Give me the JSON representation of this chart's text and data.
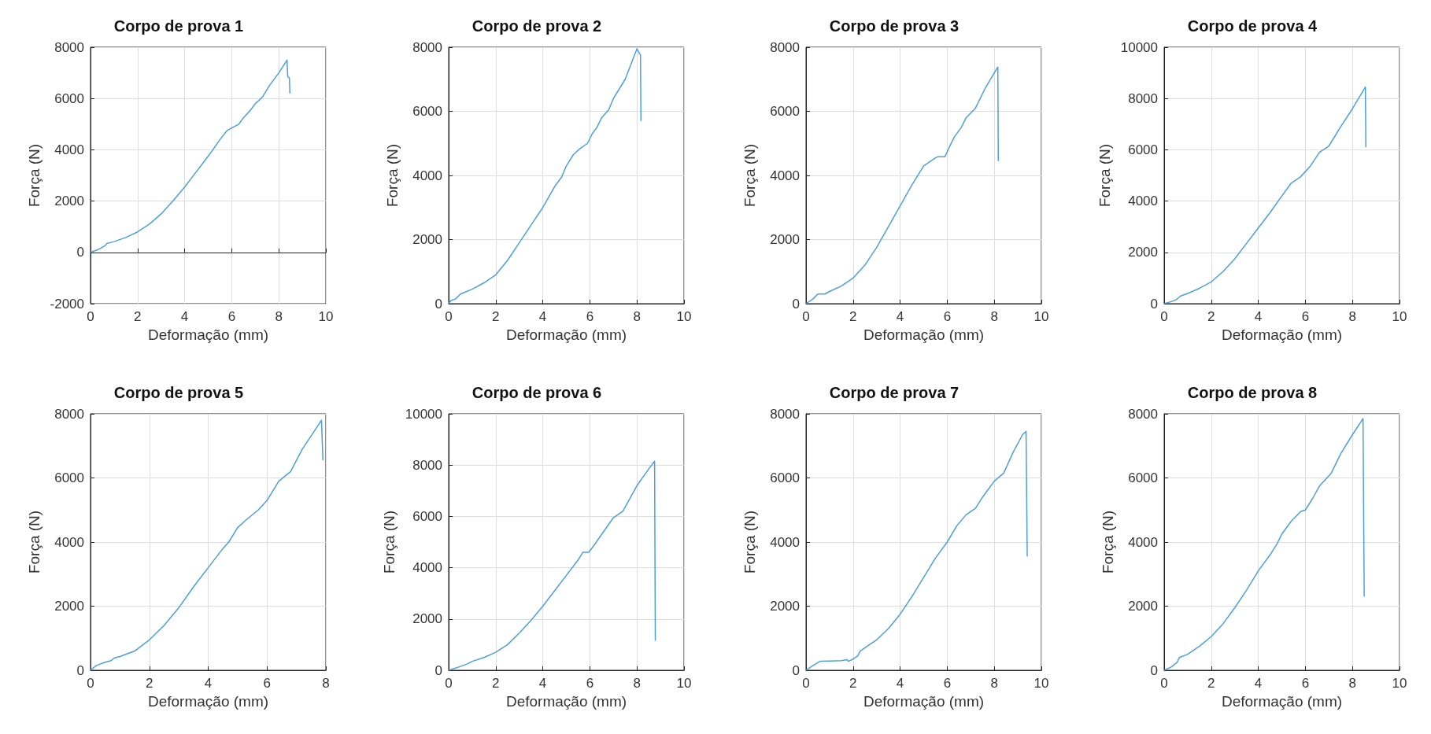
{
  "chart_data": [
    {
      "type": "line",
      "title": "Corpo de prova 1",
      "xlabel": "Deformação (mm)",
      "ylabel": "Força (N)",
      "color": "#4d9fdc",
      "grid": true,
      "xlim": [
        0,
        10
      ],
      "ylim": [
        -2000,
        8000
      ],
      "xticks": [
        0,
        2,
        4,
        6,
        8,
        10
      ],
      "yticks": [
        -2000,
        0,
        2000,
        4000,
        6000,
        8000
      ],
      "x": [
        0,
        0.3,
        0.6,
        0.7,
        1.0,
        1.5,
        2.0,
        2.5,
        3.0,
        3.5,
        4.0,
        4.5,
        5.0,
        5.2,
        5.5,
        5.8,
        6.0,
        6.3,
        6.5,
        6.8,
        7.0,
        7.3,
        7.6,
        8.0,
        8.35,
        8.38,
        8.45,
        8.47
      ],
      "values": [
        0,
        100,
        250,
        350,
        420,
        580,
        800,
        1100,
        1500,
        2000,
        2550,
        3150,
        3750,
        4000,
        4400,
        4750,
        4850,
        5000,
        5250,
        5550,
        5800,
        6050,
        6500,
        7000,
        7500,
        6850,
        6800,
        6200
      ]
    },
    {
      "type": "line",
      "title": "Corpo de prova 2",
      "xlabel": "Deformação (mm)",
      "ylabel": "Força (N)",
      "color": "#4d9fdc",
      "grid": true,
      "xlim": [
        0,
        10
      ],
      "ylim": [
        0,
        8000
      ],
      "xticks": [
        0,
        2,
        4,
        6,
        8,
        10
      ],
      "yticks": [
        0,
        2000,
        4000,
        6000,
        8000
      ],
      "x": [
        0,
        0.1,
        0.3,
        0.5,
        1.0,
        1.5,
        2.0,
        2.5,
        3.0,
        3.5,
        4.0,
        4.5,
        4.8,
        5.0,
        5.3,
        5.6,
        5.9,
        6.1,
        6.3,
        6.5,
        6.8,
        7.0,
        7.5,
        8.0,
        8.15,
        8.17
      ],
      "values": [
        0,
        100,
        150,
        300,
        450,
        650,
        900,
        1350,
        1900,
        2450,
        3000,
        3650,
        3950,
        4300,
        4650,
        4850,
        5000,
        5300,
        5500,
        5800,
        6050,
        6400,
        7000,
        7950,
        7750,
        5700
      ]
    },
    {
      "type": "line",
      "title": "Corpo de prova 3",
      "xlabel": "Deformação (mm)",
      "ylabel": "Força (N)",
      "color": "#4d9fdc",
      "grid": true,
      "xlim": [
        0,
        10
      ],
      "ylim": [
        0,
        8000
      ],
      "xticks": [
        0,
        2,
        4,
        6,
        8,
        10
      ],
      "yticks": [
        0,
        2000,
        4000,
        6000,
        8000
      ],
      "x": [
        0,
        0.3,
        0.5,
        0.8,
        1.0,
        1.5,
        2.0,
        2.5,
        3.0,
        3.5,
        4.0,
        4.5,
        5.0,
        5.5,
        5.6,
        5.9,
        6.1,
        6.3,
        6.6,
        6.8,
        7.2,
        7.6,
        8.0,
        8.15,
        8.17
      ],
      "values": [
        0,
        150,
        300,
        300,
        380,
        550,
        800,
        1200,
        1750,
        2400,
        3050,
        3700,
        4300,
        4550,
        4580,
        4580,
        4900,
        5200,
        5500,
        5800,
        6100,
        6700,
        7200,
        7380,
        4450
      ]
    },
    {
      "type": "line",
      "title": "Corpo de prova 4",
      "xlabel": "Deformação (mm)",
      "ylabel": "Força (N)",
      "color": "#4d9fdc",
      "grid": true,
      "xlim": [
        0,
        10
      ],
      "ylim": [
        0,
        10000
      ],
      "xticks": [
        0,
        2,
        4,
        6,
        8,
        10
      ],
      "yticks": [
        0,
        2000,
        4000,
        6000,
        8000,
        10000
      ],
      "x": [
        0,
        0.3,
        0.5,
        0.7,
        1.0,
        1.5,
        2.0,
        2.5,
        3.0,
        3.5,
        4.0,
        4.5,
        5.0,
        5.4,
        5.8,
        6.2,
        6.6,
        7.0,
        7.5,
        8.0,
        8.55,
        8.57
      ],
      "values": [
        0,
        80,
        150,
        300,
        400,
        600,
        850,
        1250,
        1750,
        2350,
        2950,
        3550,
        4200,
        4700,
        4950,
        5350,
        5900,
        6150,
        6900,
        7600,
        8450,
        6100
      ]
    },
    {
      "type": "line",
      "title": "Corpo de prova 5",
      "xlabel": "Deformação (mm)",
      "ylabel": "Força (N)",
      "color": "#4d9fdc",
      "grid": true,
      "xlim": [
        0,
        8
      ],
      "ylim": [
        0,
        8000
      ],
      "xticks": [
        0,
        2,
        4,
        6,
        8
      ],
      "yticks": [
        0,
        2000,
        4000,
        6000,
        8000
      ],
      "x": [
        0,
        0.2,
        0.5,
        0.7,
        0.8,
        1.0,
        1.5,
        2.0,
        2.5,
        3.0,
        3.5,
        4.0,
        4.5,
        4.7,
        5.0,
        5.3,
        5.7,
        6.0,
        6.4,
        6.8,
        7.2,
        7.6,
        7.85,
        7.9
      ],
      "values": [
        0,
        150,
        250,
        300,
        380,
        430,
        600,
        950,
        1400,
        1950,
        2600,
        3200,
        3800,
        4000,
        4450,
        4700,
        5000,
        5300,
        5900,
        6200,
        6900,
        7450,
        7800,
        6550
      ]
    },
    {
      "type": "line",
      "title": "Corpo de prova 6",
      "xlabel": "Deformação (mm)",
      "ylabel": "Força (N)",
      "color": "#4d9fdc",
      "grid": true,
      "xlim": [
        0,
        10
      ],
      "ylim": [
        0,
        10000
      ],
      "xticks": [
        0,
        2,
        4,
        6,
        8,
        10
      ],
      "yticks": [
        0,
        2000,
        4000,
        6000,
        8000,
        10000
      ],
      "x": [
        0,
        0.5,
        0.8,
        1.0,
        1.5,
        2.0,
        2.5,
        3.0,
        3.5,
        4.0,
        4.5,
        5.0,
        5.5,
        5.7,
        5.95,
        6.2,
        6.5,
        7.0,
        7.4,
        8.0,
        8.5,
        8.75,
        8.78
      ],
      "values": [
        0,
        150,
        250,
        350,
        500,
        700,
        1000,
        1450,
        1950,
        2500,
        3100,
        3700,
        4300,
        4600,
        4600,
        4900,
        5300,
        5950,
        6200,
        7200,
        7850,
        8150,
        1150
      ]
    },
    {
      "type": "line",
      "title": "Corpo de prova 7",
      "xlabel": "Deformação (mm)",
      "ylabel": "Força (N)",
      "color": "#4d9fdc",
      "grid": true,
      "xlim": [
        0,
        10
      ],
      "ylim": [
        0,
        8000
      ],
      "xticks": [
        0,
        2,
        4,
        6,
        8,
        10
      ],
      "yticks": [
        0,
        2000,
        4000,
        6000,
        8000
      ],
      "x": [
        0,
        0.3,
        0.6,
        1.0,
        1.5,
        1.75,
        1.8,
        2.0,
        2.2,
        2.3,
        2.6,
        3.0,
        3.5,
        4.0,
        4.5,
        5.0,
        5.5,
        6.0,
        6.4,
        6.8,
        7.2,
        7.5,
        7.8,
        8.0,
        8.4,
        8.8,
        9.2,
        9.35,
        9.4
      ],
      "values": [
        0,
        150,
        280,
        290,
        300,
        330,
        280,
        350,
        450,
        600,
        750,
        950,
        1300,
        1750,
        2300,
        2900,
        3500,
        4000,
        4500,
        4850,
        5050,
        5400,
        5700,
        5900,
        6150,
        6800,
        7350,
        7450,
        3550
      ]
    },
    {
      "type": "line",
      "title": "Corpo de prova 8",
      "xlabel": "Deformação (mm)",
      "ylabel": "Força (N)",
      "color": "#4d9fdc",
      "grid": true,
      "xlim": [
        0,
        10
      ],
      "ylim": [
        0,
        8000
      ],
      "xticks": [
        0,
        2,
        4,
        6,
        8,
        10
      ],
      "yticks": [
        0,
        2000,
        4000,
        6000,
        8000
      ],
      "x": [
        0,
        0.3,
        0.55,
        0.65,
        1.0,
        1.5,
        2.0,
        2.5,
        3.0,
        3.5,
        4.0,
        4.5,
        4.8,
        5.0,
        5.4,
        5.8,
        6.0,
        6.3,
        6.6,
        7.1,
        7.5,
        8.0,
        8.45,
        8.5
      ],
      "values": [
        0,
        100,
        250,
        400,
        500,
        750,
        1050,
        1450,
        1950,
        2500,
        3100,
        3600,
        3950,
        4250,
        4650,
        4950,
        5000,
        5350,
        5750,
        6150,
        6750,
        7350,
        7850,
        2300
      ]
    }
  ]
}
